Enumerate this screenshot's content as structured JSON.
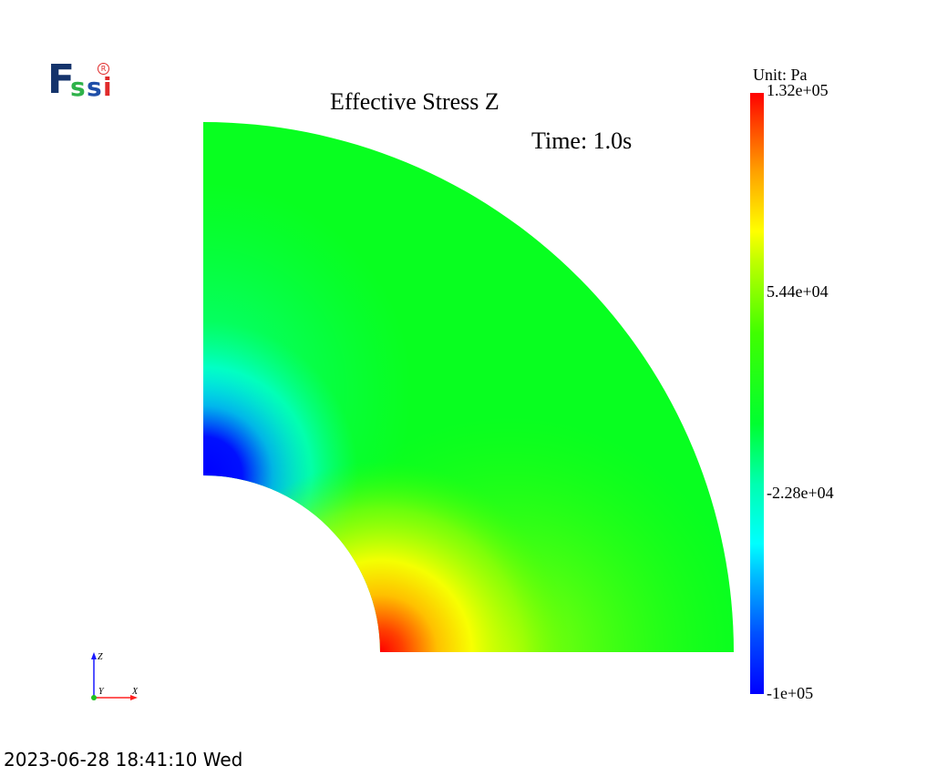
{
  "header": {
    "title": "Effective Stress Z",
    "time_label": "Time: 1.0s"
  },
  "logo": {
    "letters": [
      "F",
      "s",
      "s",
      "i"
    ],
    "registered_mark": "R"
  },
  "colorbar": {
    "unit_label": "Unit:  Pa",
    "ticks": [
      {
        "label": "1.32e+05",
        "value": 132000
      },
      {
        "label": "5.44e+04",
        "value": 54400
      },
      {
        "label": "-2.28e+04",
        "value": -22800
      },
      {
        "label": "-1e+05",
        "value": -100000
      }
    ],
    "range": [
      -100000,
      132000
    ]
  },
  "axes_triad": {
    "z_label": "Z",
    "y_label": "Y",
    "x_label": "X",
    "colors": {
      "z": "#1a1aff",
      "x": "#ff2020",
      "y": "#20c020"
    }
  },
  "footer": {
    "timestamp": "2023-06-28 18:41:10 Wed"
  }
}
